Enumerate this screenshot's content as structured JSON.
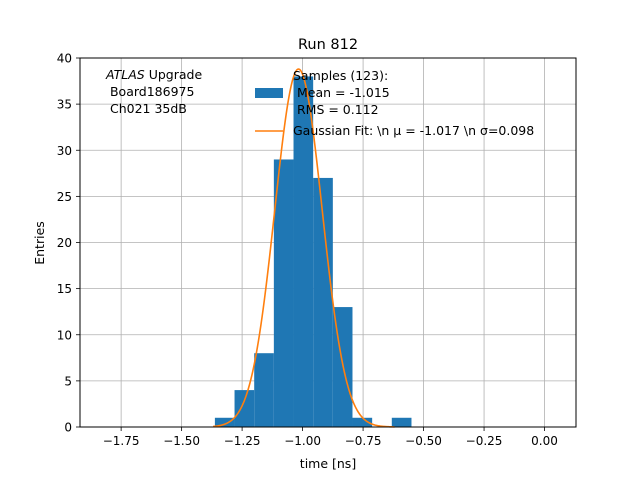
{
  "chart_data": {
    "type": "bar",
    "title": "Run 812",
    "xlabel": "time [ns]",
    "ylabel": "Entries",
    "xlim": [
      -1.92,
      0.13
    ],
    "ylim": [
      0,
      40
    ],
    "grid": true,
    "x_ticks": [
      -1.75,
      -1.5,
      -1.25,
      -1.0,
      -0.75,
      -0.5,
      -0.25,
      0.0
    ],
    "x_tick_labels": [
      "−1.75",
      "−1.50",
      "−1.25",
      "−1.00",
      "−0.75",
      "−0.50",
      "−0.25",
      "0.00"
    ],
    "y_ticks": [
      0,
      5,
      10,
      15,
      20,
      25,
      30,
      35,
      40
    ],
    "y_tick_labels": [
      "0",
      "5",
      "10",
      "15",
      "20",
      "25",
      "30",
      "35",
      "40"
    ],
    "annotation": {
      "italic": "ATLAS",
      "line1_rest": " Upgrade",
      "line2": " Board186975",
      "line3": " Ch021 35dB"
    },
    "histogram": {
      "name_lines": [
        "Samples (123):",
        " Mean = -1.015",
        " RMS = 0.112"
      ],
      "color": "#1f77b4",
      "bin_edges": [
        -1.3625,
        -1.2813,
        -1.2,
        -1.1188,
        -1.0375,
        -0.9563,
        -0.875,
        -0.7938,
        -0.7125,
        -0.6313,
        -0.55,
        -0.4688
      ],
      "counts": [
        1,
        4,
        8,
        29,
        38,
        27,
        13,
        1,
        0,
        1,
        0,
        1
      ]
    },
    "fit": {
      "name": "Gaussian Fit: \\n μ = -1.017 \\n σ=0.098",
      "color": "#ff7f0e",
      "mu": -1.017,
      "sigma": 0.098,
      "amplitude": 38.8,
      "x_range": [
        -1.37,
        -0.62
      ]
    },
    "legend_position": "upper center"
  }
}
